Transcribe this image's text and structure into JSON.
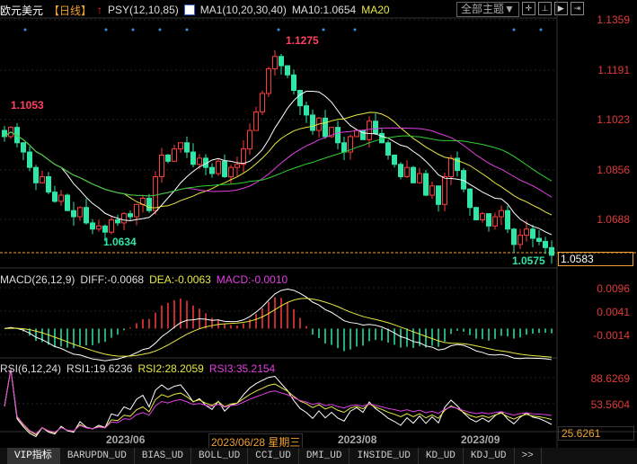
{
  "header": {
    "symbol": "欧元美元",
    "period": "【日线】",
    "psy": "PSY(12,10,85)",
    "ma": "MA1(10,20,30,40)",
    "ma10": "MA10:1.0654",
    "ma20": "MA20",
    "theme_button": "全部主题▼"
  },
  "price_axis": [
    "1.1359",
    "1.1191",
    "1.1023",
    "1.0856",
    "1.0688"
  ],
  "current_price": "1.0583",
  "annotations": {
    "high": "1.1275",
    "low": "1.0634",
    "left_high": "1.1053",
    "last_low": "1.0575"
  },
  "macd": {
    "title": "MACD(26,12,9)",
    "diff": "DIFF:-0.0068",
    "dea": "DEA:-0.0063",
    "macd": "MACD:-0.0010",
    "axis": [
      "0.0096",
      "0.0041",
      "-0.0014"
    ]
  },
  "rsi": {
    "title": "RSI(6,12,24)",
    "rsi1": "RSI1:19.6236",
    "rsi2": "RSI2:28.2059",
    "rsi3": "RSI3:35.2154",
    "axis": [
      "88.6269",
      "53.5604",
      "25.6261"
    ]
  },
  "dates": [
    "2023/06",
    "2023/06/28 星期三",
    "2023/08",
    "2023/09"
  ],
  "tabs": [
    "VIP指标",
    "BARUPDN_UD",
    "BIAS_UD",
    "BOLL_UD",
    "CCI_UD",
    "DMI_UD",
    "INSIDE_UD",
    "KD_UD",
    "KDJ_UD",
    ">>"
  ],
  "colors": {
    "up": "#ff3b3b",
    "down": "#2ee6a6",
    "ma10": "#ffffff",
    "ma20": "#e8e840",
    "ma30": "#e040e0",
    "ma40": "#30d030"
  },
  "chart_data": {
    "type": "candlestick",
    "closes": [
      1.098,
      1.101,
      1.096,
      1.093,
      1.088,
      1.083,
      1.085,
      1.08,
      1.077,
      1.079,
      1.074,
      1.072,
      1.075,
      1.07,
      1.068,
      1.069,
      1.067,
      1.071,
      1.07,
      1.073,
      1.072,
      1.076,
      1.078,
      1.074,
      1.085,
      1.092,
      1.09,
      1.094,
      1.096,
      1.093,
      1.089,
      1.091,
      1.088,
      1.086,
      1.09,
      1.085,
      1.088,
      1.089,
      1.094,
      1.1,
      1.106,
      1.112,
      1.12,
      1.124,
      1.121,
      1.118,
      1.113,
      1.108,
      1.105,
      1.1,
      1.104,
      1.098,
      1.101,
      1.096,
      1.093,
      1.098,
      1.1,
      1.097,
      1.103,
      1.099,
      1.096,
      1.092,
      1.089,
      1.085,
      1.088,
      1.083,
      1.086,
      1.079,
      1.082,
      1.076,
      1.085,
      1.091,
      1.087,
      1.081,
      1.075,
      1.071,
      1.073,
      1.069,
      1.072,
      1.074,
      1.068,
      1.063,
      1.066,
      1.068,
      1.065,
      1.064,
      1.062,
      1.0595
    ],
    "ylim": [
      1.0583,
      1.1359
    ]
  }
}
